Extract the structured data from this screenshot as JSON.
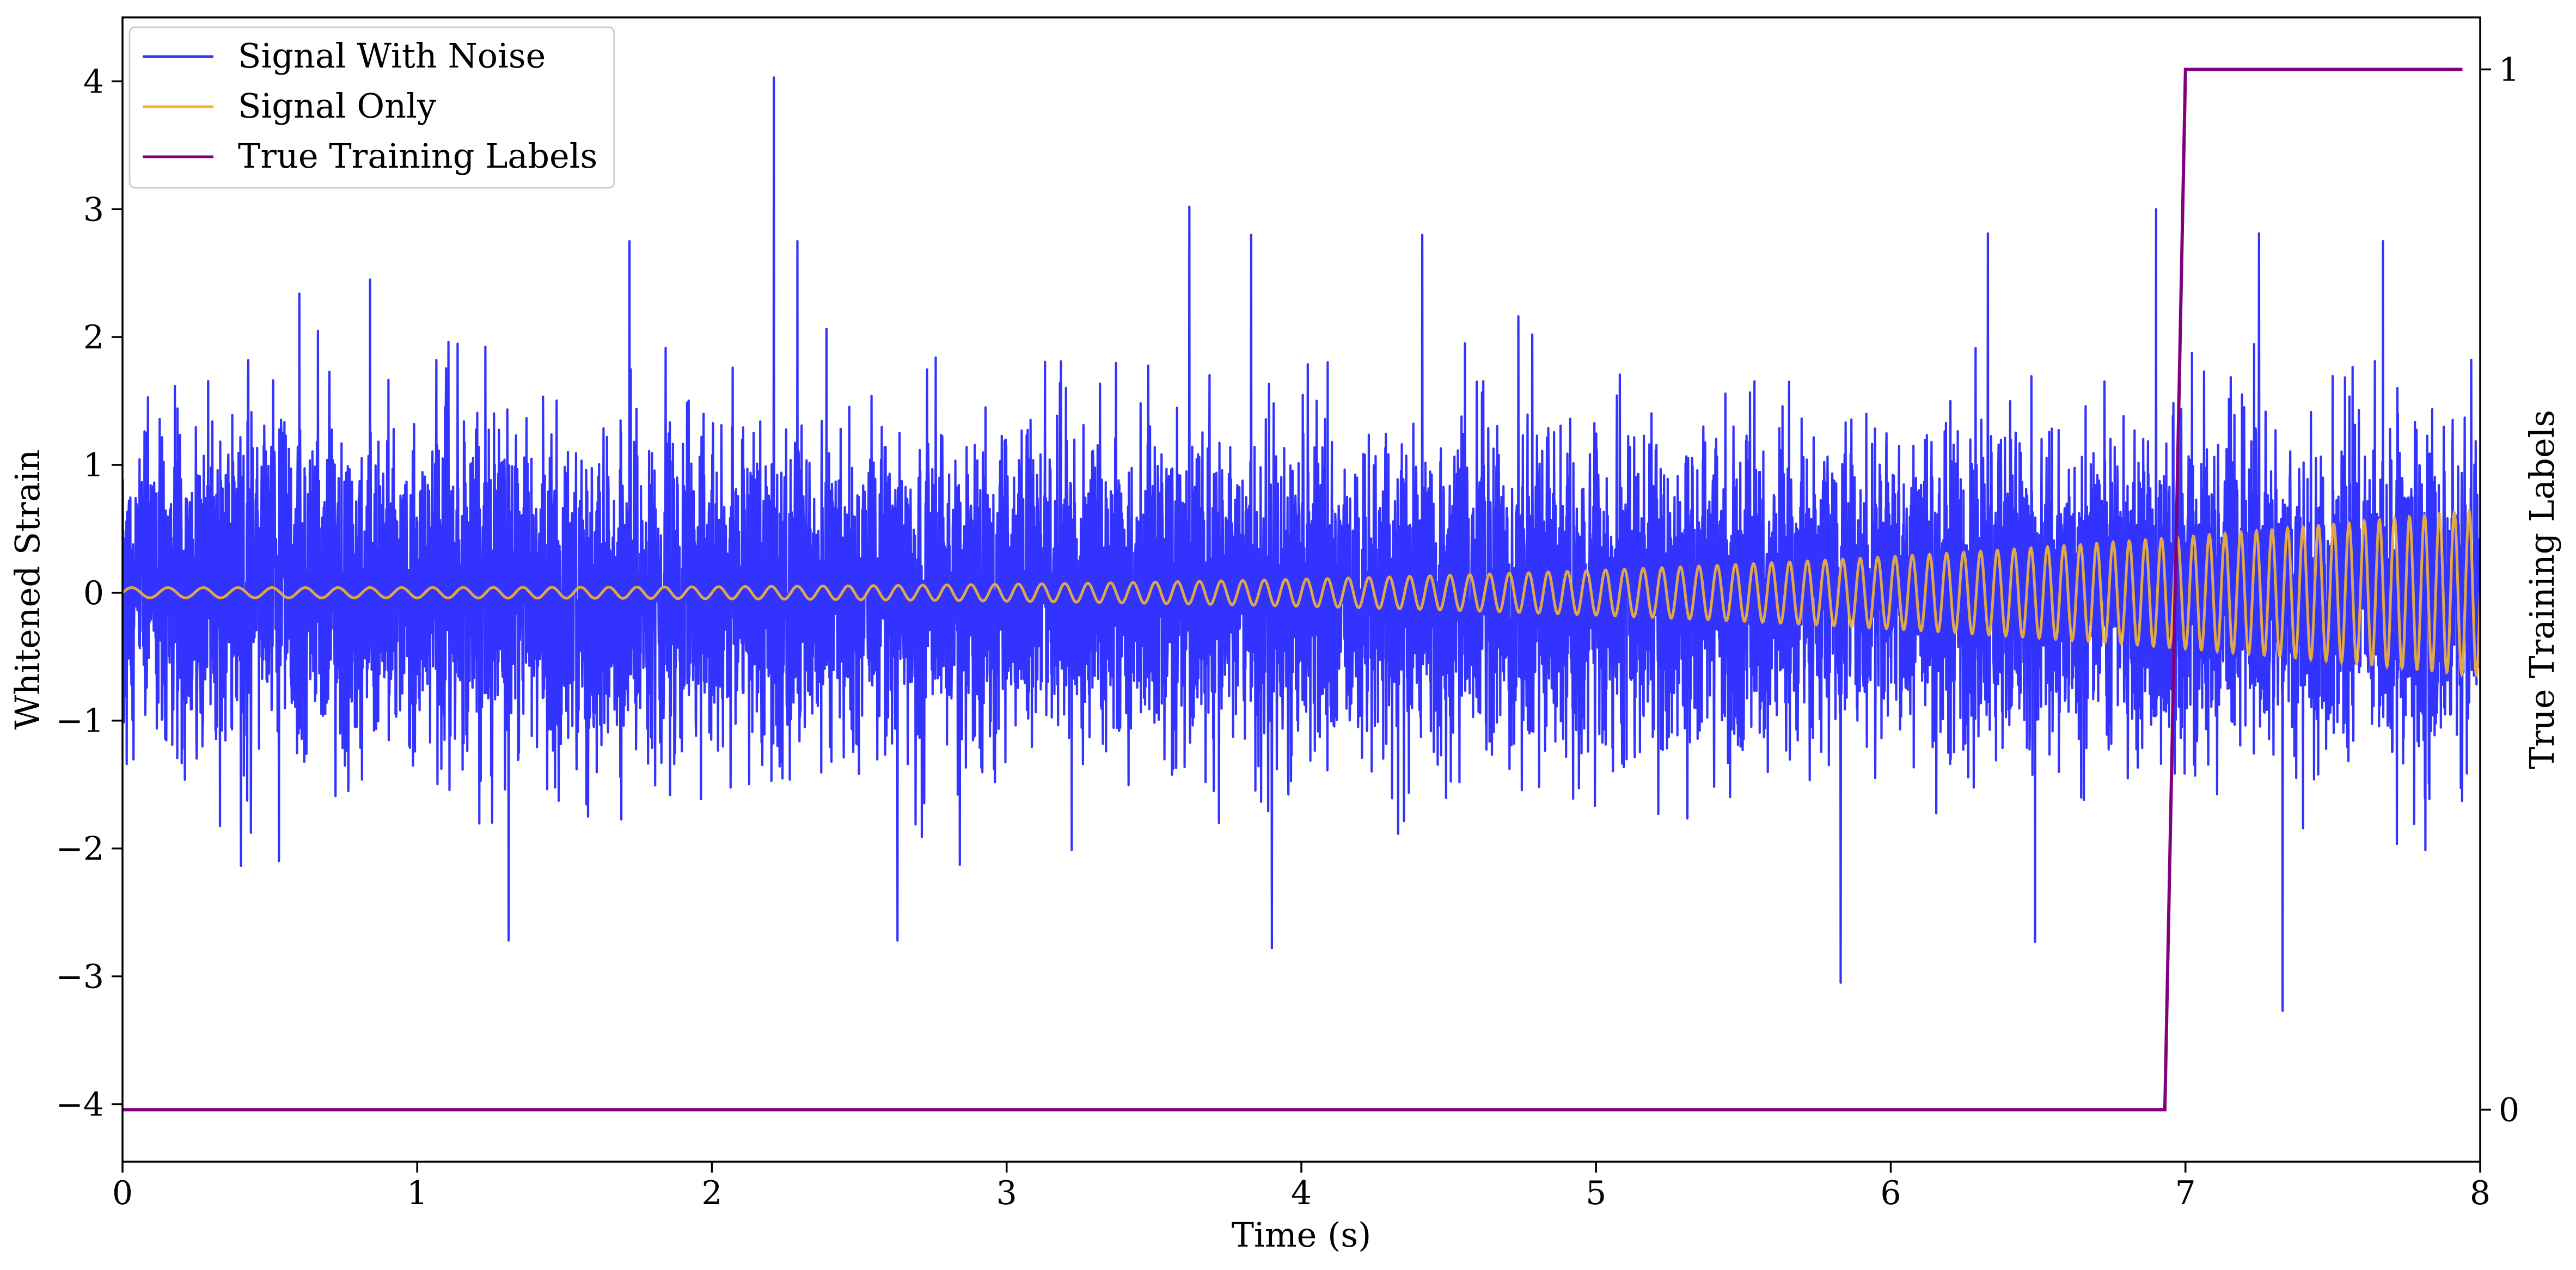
{
  "chart_data": {
    "type": "line",
    "xlabel": "Time (s)",
    "ylabel": "Whitened Strain",
    "y2label": "True Training Labels",
    "xlim": [
      0,
      8
    ],
    "ylim": [
      -4.45,
      4.5
    ],
    "y2lim": [
      -0.05,
      1.05
    ],
    "x_ticks": [
      0,
      1,
      2,
      3,
      4,
      5,
      6,
      7,
      8
    ],
    "x_tick_labels": [
      "0",
      "1",
      "2",
      "3",
      "4",
      "5",
      "6",
      "7",
      "8"
    ],
    "y_ticks": [
      -4,
      -3,
      -2,
      -1,
      0,
      1,
      2,
      3,
      4
    ],
    "y_tick_labels": [
      "−4",
      "−3",
      "−2",
      "−1",
      "0",
      "1",
      "2",
      "3",
      "4"
    ],
    "y2_ticks": [
      0,
      1
    ],
    "y2_tick_labels": [
      "0",
      "1"
    ],
    "legend_position": "top-left",
    "grid": false,
    "series": [
      {
        "name": "Signal With Noise",
        "color": "#3333ff",
        "axis": "left",
        "kind": "noise",
        "x_range": [
          0,
          8
        ],
        "typical_abs_max": 2.2,
        "spikes": [
          {
            "x": 0.6,
            "y": 2.34
          },
          {
            "x": 0.84,
            "y": 2.45
          },
          {
            "x": 1.31,
            "y": 2.72
          },
          {
            "x": 1.31,
            "y": -2.72
          },
          {
            "x": 1.72,
            "y": 2.75
          },
          {
            "x": 2.21,
            "y": 4.03
          },
          {
            "x": 2.29,
            "y": 2.75
          },
          {
            "x": 2.63,
            "y": -2.72
          },
          {
            "x": 3.62,
            "y": 3.02
          },
          {
            "x": 3.83,
            "y": 2.8
          },
          {
            "x": 3.9,
            "y": -2.78
          },
          {
            "x": 4.41,
            "y": 2.8
          },
          {
            "x": 5.83,
            "y": -3.05
          },
          {
            "x": 6.33,
            "y": 2.81
          },
          {
            "x": 6.49,
            "y": -2.73
          },
          {
            "x": 6.9,
            "y": 3.0
          },
          {
            "x": 7.25,
            "y": 2.81
          },
          {
            "x": 7.33,
            "y": -3.27
          },
          {
            "x": 7.67,
            "y": 2.75
          }
        ]
      },
      {
        "name": "Signal Only",
        "color": "#f5b731",
        "axis": "left",
        "kind": "chirp",
        "x_range": [
          0,
          8
        ],
        "amplitude_start": 0.04,
        "amplitude_end": 0.65,
        "frequency_start_hz": 8,
        "frequency_end_hz": 20
      },
      {
        "name": "True Training Labels",
        "color": "#800080",
        "axis": "right",
        "kind": "step",
        "x": [
          0,
          6.93,
          7.0,
          7.94
        ],
        "y": [
          0,
          0,
          1,
          1
        ]
      }
    ]
  }
}
